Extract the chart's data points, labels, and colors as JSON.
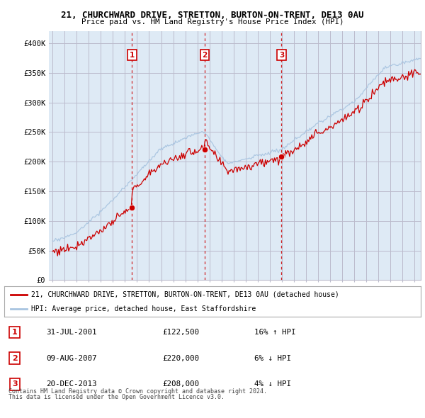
{
  "title": "21, CHURCHWARD DRIVE, STRETTON, BURTON-ON-TRENT, DE13 0AU",
  "subtitle": "Price paid vs. HM Land Registry's House Price Index (HPI)",
  "legend_line1": "21, CHURCHWARD DRIVE, STRETTON, BURTON-ON-TRENT, DE13 0AU (detached house)",
  "legend_line2": "HPI: Average price, detached house, East Staffordshire",
  "footer1": "Contains HM Land Registry data © Crown copyright and database right 2024.",
  "footer2": "This data is licensed under the Open Government Licence v3.0.",
  "sale_points": [
    {
      "label": "1",
      "date": "31-JUL-2001",
      "price": 122500,
      "hpi_note": "16% ↑ HPI",
      "x": 2001.58
    },
    {
      "label": "2",
      "date": "09-AUG-2007",
      "price": 220000,
      "hpi_note": "6% ↓ HPI",
      "x": 2007.61
    },
    {
      "label": "3",
      "date": "20-DEC-2013",
      "price": 208000,
      "hpi_note": "4% ↓ HPI",
      "x": 2013.97
    }
  ],
  "hpi_color": "#a8c4e0",
  "price_color": "#cc0000",
  "sale_color": "#cc0000",
  "vline_color": "#cc0000",
  "chart_bg_color": "#deeaf5",
  "background_color": "#ffffff",
  "grid_color": "#bbbbcc",
  "ylim": [
    0,
    420000
  ],
  "yticks": [
    0,
    50000,
    100000,
    150000,
    200000,
    250000,
    300000,
    350000,
    400000
  ],
  "xlim_start": 1994.7,
  "xlim_end": 2025.5
}
